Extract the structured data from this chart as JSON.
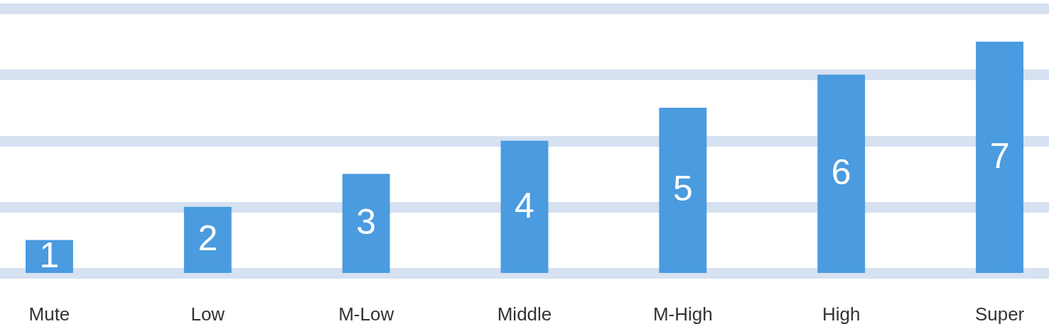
{
  "chart_data": {
    "type": "bar",
    "categories": [
      "Mute",
      "Low",
      "M-Low",
      "Middle",
      "M-High",
      "High",
      "Super"
    ],
    "values": [
      1,
      2,
      3,
      4,
      5,
      6,
      7
    ],
    "color": "#4a9bdf",
    "data_labels": true,
    "ylim": [
      0,
      8
    ],
    "yticks": [
      {
        "value": 0,
        "label": null
      },
      {
        "value": 2,
        "label": null
      },
      {
        "value": 4,
        "label": null
      },
      {
        "value": 6,
        "label": null
      },
      {
        "value": 8,
        "label": null
      }
    ],
    "grid": "y",
    "tick_labels": "x"
  }
}
